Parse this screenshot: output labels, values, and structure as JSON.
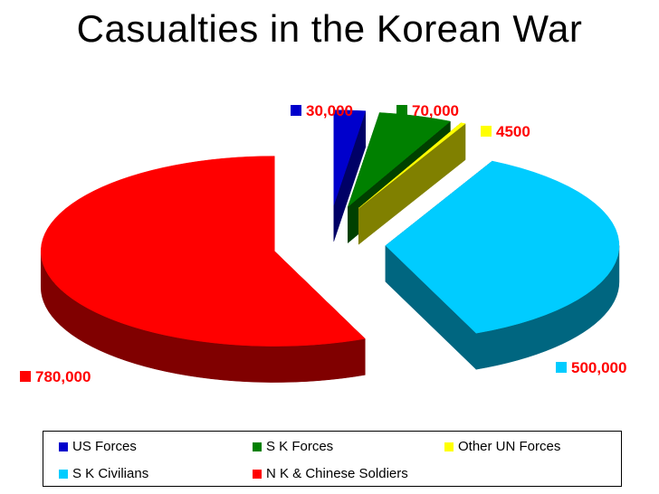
{
  "chart_data": {
    "type": "pie",
    "style": "3d-exploded",
    "title": "Casualties in the Korean War",
    "slices": [
      {
        "name": "US Forces",
        "value": 30000,
        "label": "30,000",
        "color": "#0000cc",
        "side_color": "#000066"
      },
      {
        "name": "S K Forces",
        "value": 70000,
        "label": "70,000",
        "color": "#008000",
        "side_color": "#004000"
      },
      {
        "name": "Other UN Forces",
        "value": 4500,
        "label": "4500",
        "color": "#ffff00",
        "side_color": "#808000"
      },
      {
        "name": "S K Civilians",
        "value": 500000,
        "label": "500,000",
        "color": "#00ccff",
        "side_color": "#006680"
      },
      {
        "name": "N K & Chinese Soldiers",
        "value": 780000,
        "label": "780,000",
        "color": "#ff0000",
        "side_color": "#800000"
      }
    ],
    "legend_position": "bottom"
  }
}
